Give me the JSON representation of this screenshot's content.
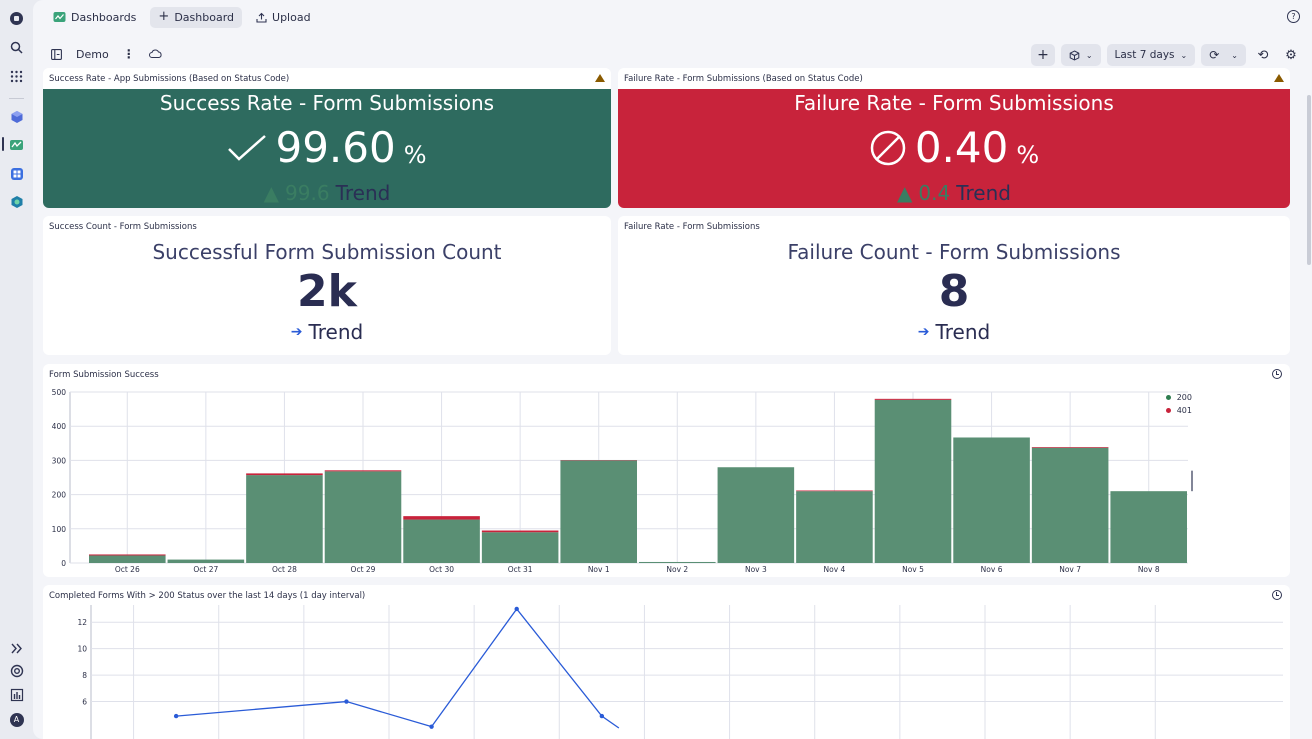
{
  "rail": {
    "icons": [
      "logo-icon",
      "search-icon",
      "apps-grid-icon",
      "cube-icon",
      "dashboards-icon",
      "grid-app-icon",
      "hexagon-app-icon",
      "expand-icon",
      "support-icon",
      "analytics-icon",
      "user-avatar-icon"
    ],
    "avatar_letter": "A"
  },
  "topbar": {
    "dashboards_label": "Dashboards",
    "new_dashboard_label": "Dashboard",
    "upload_label": "Upload"
  },
  "dashbar": {
    "dashboard_name": "Demo",
    "timeframe_label": "Last 7 days"
  },
  "tiles": {
    "success_rate": {
      "title": "Success Rate - App Submissions (Based on Status Code)",
      "heading": "Success Rate - Form Submissions",
      "value": "99.60",
      "unit": "%",
      "trend_value": "99.6",
      "trend_label": "Trend",
      "color": "#2e6b5f"
    },
    "failure_rate": {
      "title": "Failure Rate - Form Submissions (Based on Status Code)",
      "heading": "Failure Rate - Form Submissions",
      "value": "0.40",
      "unit": "%",
      "trend_value": "0.4",
      "trend_label": "Trend",
      "color": "#c8233b"
    },
    "success_count": {
      "title": "Success Count - Form Submissions",
      "heading": "Successful Form Submission Count",
      "value": "2k",
      "trend_label": "Trend"
    },
    "failure_count": {
      "title": "Failure Rate - Form Submissions",
      "heading": "Failure Count - Form Submissions",
      "value": "8",
      "trend_label": "Trend"
    },
    "bar_chart": {
      "title": "Form Submission Success"
    },
    "line_chart": {
      "title": "Completed Forms With > 200 Status over the last 14 days (1 day interval)"
    }
  },
  "chart_data": [
    {
      "type": "bar",
      "categories": [
        "Oct 26",
        "Oct 27",
        "Oct 28",
        "Oct 29",
        "Oct 30",
        "Oct 31",
        "Nov 1",
        "Nov 2",
        "Nov 3",
        "Nov 4",
        "Nov 5",
        "Nov 6",
        "Nov 7",
        "Nov 8"
      ],
      "series": [
        {
          "name": "200",
          "color": "#5a8f74",
          "values": [
            22,
            10,
            257,
            268,
            127,
            90,
            300,
            3,
            280,
            210,
            477,
            367,
            337,
            210
          ]
        },
        {
          "name": "401",
          "color": "#c8233b",
          "values": [
            3,
            0,
            5,
            3,
            10,
            5,
            1,
            0,
            0,
            2,
            3,
            0,
            2,
            0
          ]
        }
      ],
      "stacked": true,
      "yticks": [
        0,
        100,
        200,
        300,
        400,
        500
      ],
      "ylim": [
        0,
        500
      ],
      "grid": true,
      "legend": "top-right"
    },
    {
      "type": "line",
      "series": [
        {
          "color": "#2a5bd7",
          "points": [
            [
              1,
              4.9
            ],
            [
              3,
              6.0
            ],
            [
              4,
              4.1
            ],
            [
              5,
              13.0
            ],
            [
              6,
              4.9
            ],
            [
              6.2,
              4.0
            ]
          ]
        }
      ],
      "xlim": [
        0,
        14
      ],
      "yticks": [
        6,
        8,
        10,
        12
      ],
      "ylim": [
        4,
        13.3
      ],
      "grid": true
    }
  ]
}
